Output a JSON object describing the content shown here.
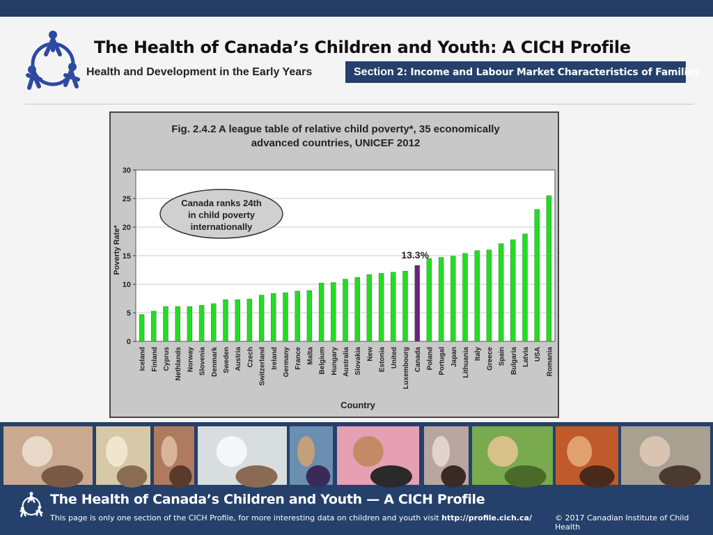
{
  "header": {
    "title": "The Health of Canada’s Children and Youth: A CICH Profile",
    "subtitle": "Health and Development in the Early Years",
    "section_word": "Section",
    "section_rest": "2:  Income and Labour Market Characteristics of Families",
    "logo_icon": "family-circle-logo-icon"
  },
  "colors": {
    "navy": "#24406b",
    "bar_green": "#22dd22",
    "bar_canada": "#6a2580",
    "plot_bg": "#ffffff",
    "frame_bg": "#c8c8c8"
  },
  "chart_data": {
    "type": "bar",
    "title_line1": "Fig. 2.4.2 A league table of relative child poverty*, 35 economically",
    "title_line2": "advanced countries, UNICEF 2012",
    "xlabel": "Country",
    "ylabel": "Poverty Rate*",
    "ylim": [
      0,
      30
    ],
    "yticks": [
      0,
      5,
      10,
      15,
      20,
      25,
      30
    ],
    "grid": "horizontal",
    "categories": [
      "Iceland",
      "Finland",
      "Cyprus",
      "Nethlands",
      "Norway",
      "Slovenia",
      "Denmark",
      "Sweden",
      "Austria",
      "Czech",
      "Switzerland",
      "Ireland",
      "Germany",
      "France",
      "Malta",
      "Belgium",
      "Hungary",
      "Australia",
      "Slovakia",
      "New",
      "Estonia",
      "United",
      "Luxembourg",
      "Canada",
      "Poland",
      "Portugal",
      "Japan",
      "Lithuania",
      "Italy",
      "Greece",
      "Spain",
      "Bulgaria",
      "Latvia",
      "USA",
      "Romania"
    ],
    "values": [
      4.7,
      5.3,
      6.1,
      6.1,
      6.1,
      6.3,
      6.6,
      7.3,
      7.3,
      7.4,
      8.1,
      8.4,
      8.5,
      8.8,
      8.9,
      10.2,
      10.3,
      10.9,
      11.2,
      11.7,
      11.9,
      12.1,
      12.3,
      13.3,
      14.5,
      14.7,
      14.9,
      15.4,
      15.9,
      16.0,
      17.1,
      17.8,
      18.8,
      23.1,
      25.5
    ],
    "highlight": "Canada",
    "highlight_label": "13.3%",
    "annotation": [
      "Canada ranks 24th",
      "in child poverty",
      "internationally"
    ]
  },
  "photos": [
    "father-and-baby-photo",
    "girl-drawing-photo",
    "sisters-photo",
    "doctor-and-child-photo",
    "dancing-child-photo",
    "mother-and-toddler-photo",
    "mother-and-newborn-photo",
    "boy-magnifier-photo",
    "child-phone-photo",
    "group-of-kids-photo"
  ],
  "footer": {
    "title": "The Health of Canada’s Children and Youth — A CICH Profile",
    "note_prefix": "This page is only one section of the CICH Profile, for more interesting data on children and youth visit ",
    "note_url": "http://profile.cich.ca/",
    "copyright": "© 2017 Canadian Institute of Child Health"
  }
}
